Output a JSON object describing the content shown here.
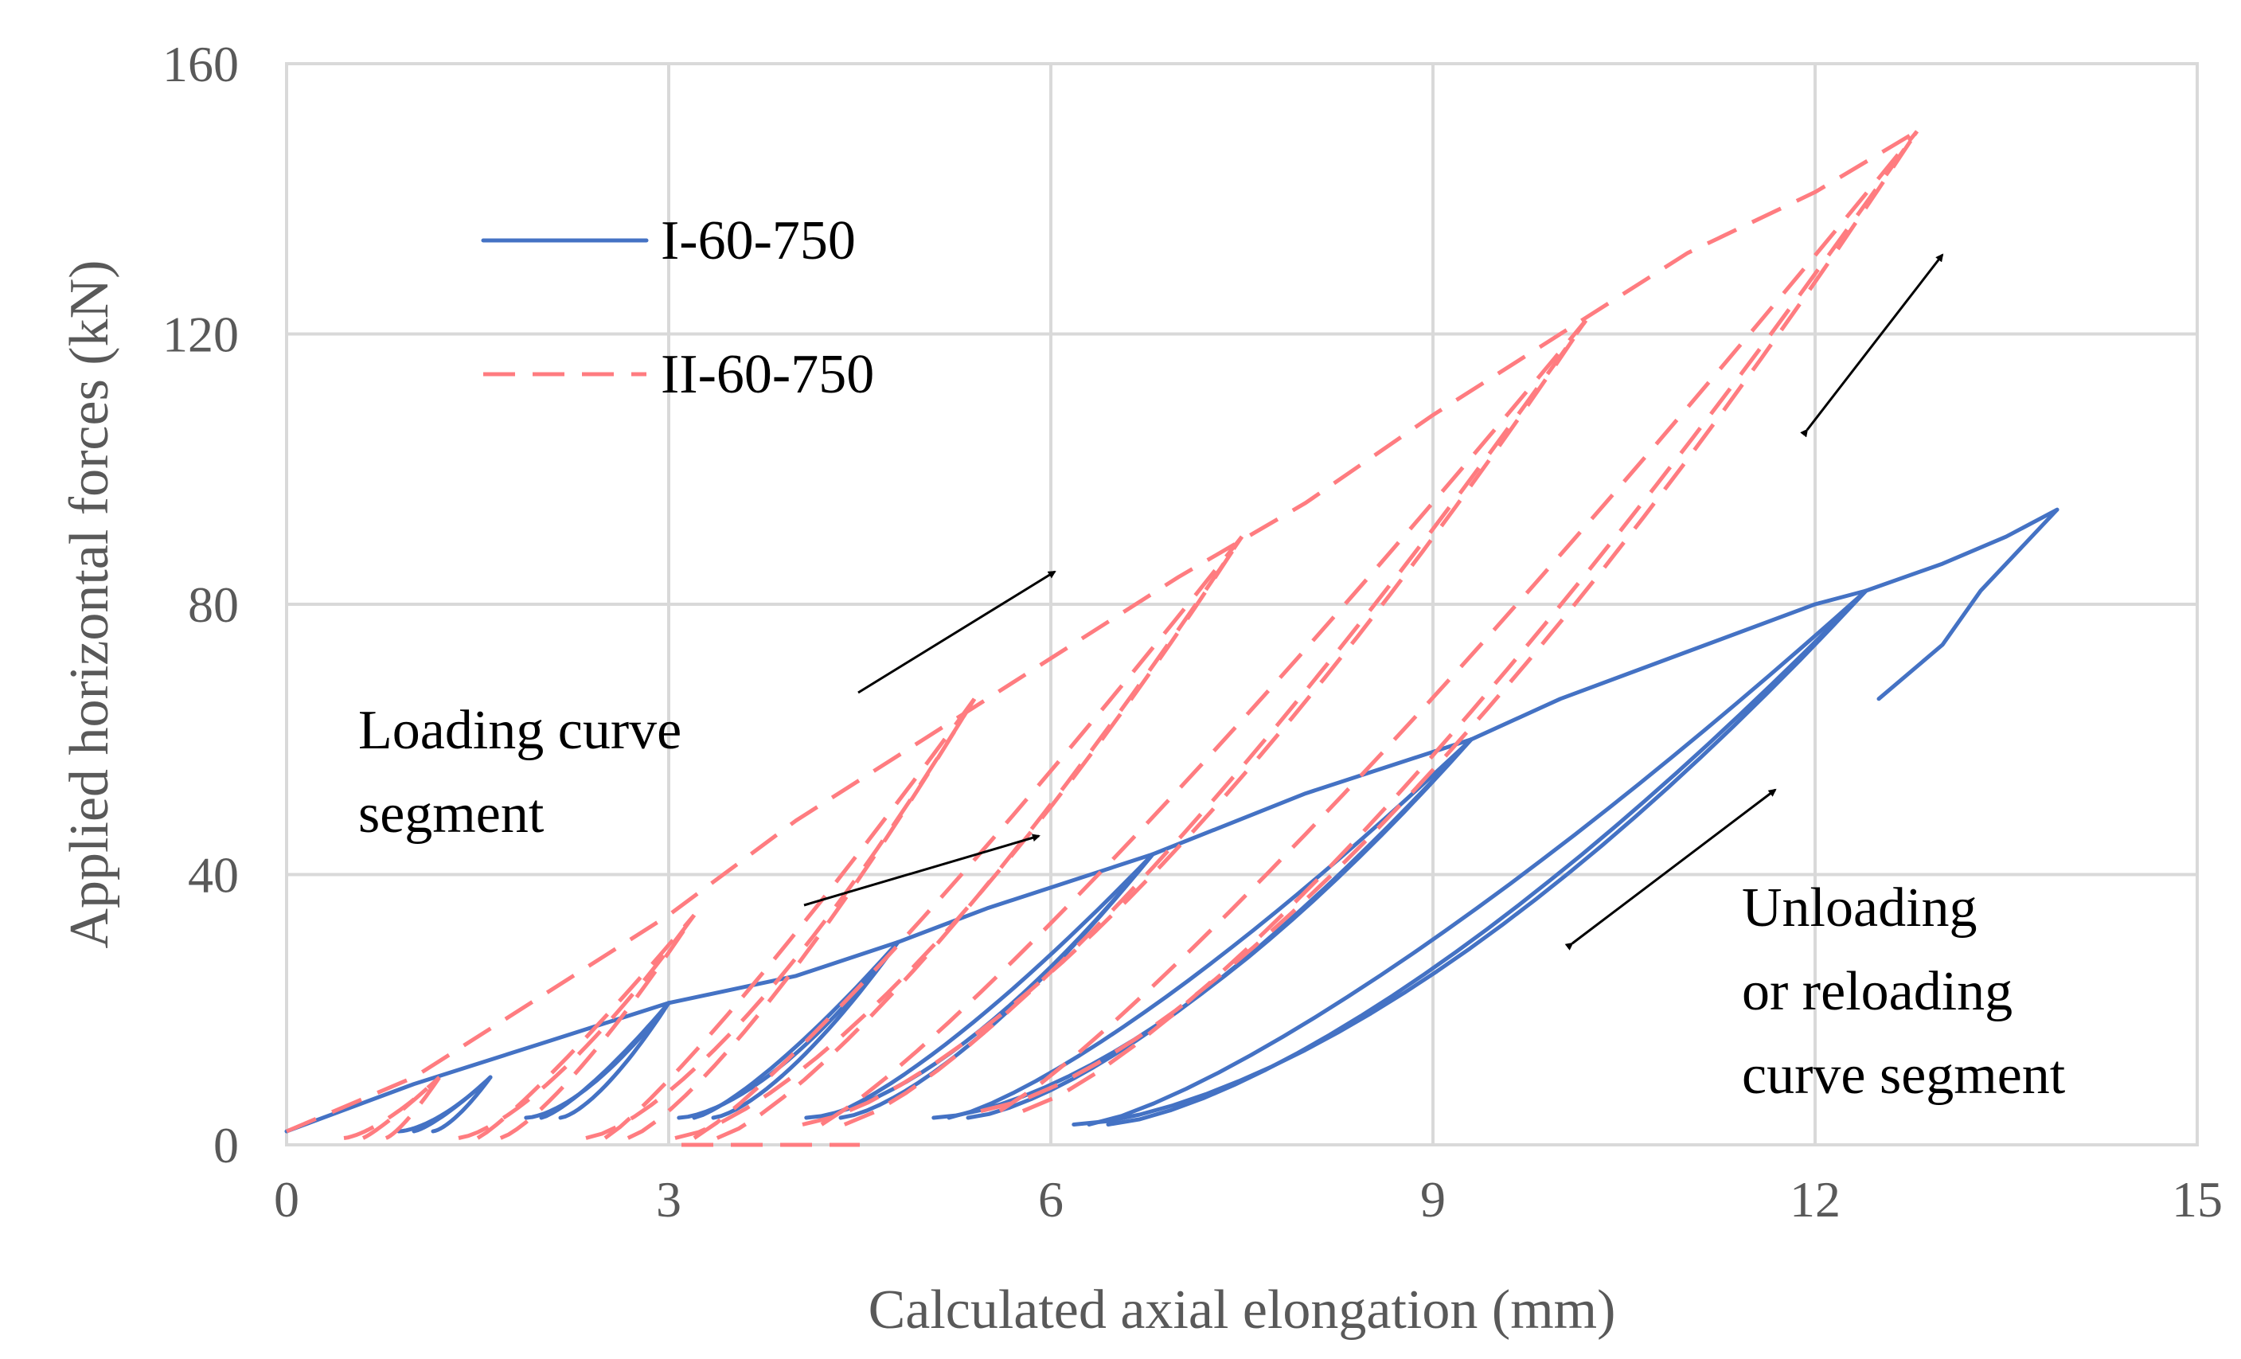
{
  "chart_data": {
    "type": "line",
    "xlabel": "Calculated axial elongation (mm)",
    "ylabel": "Applied horizontal forces (kN)",
    "xlim": [
      0,
      15
    ],
    "ylim": [
      0,
      160
    ],
    "x_ticks": [
      0,
      3,
      6,
      9,
      12,
      15
    ],
    "y_ticks": [
      0,
      40,
      80,
      120,
      160
    ],
    "grid": true,
    "legend_position": "upper-left",
    "colors": {
      "I": "#4472c4",
      "II": "#ff7c80"
    },
    "series": [
      {
        "name": "I-60-750",
        "style": "solid",
        "envelope": [
          [
            0,
            2
          ],
          [
            1,
            9
          ],
          [
            2,
            15
          ],
          [
            3,
            21
          ],
          [
            4,
            25
          ],
          [
            4.8,
            30
          ],
          [
            5.5,
            35
          ],
          [
            6.8,
            43
          ],
          [
            8,
            52
          ],
          [
            9.3,
            60
          ],
          [
            10,
            66
          ],
          [
            11,
            73
          ],
          [
            12,
            80
          ],
          [
            12.4,
            82
          ],
          [
            13,
            86
          ],
          [
            13.5,
            90
          ],
          [
            13.9,
            94
          ]
        ],
        "loops": [
          {
            "start": [
              1.0,
              2
            ],
            "peak": [
              1.6,
              10
            ]
          },
          {
            "start": [
              2.0,
              4
            ],
            "peak": [
              3.0,
              21
            ]
          },
          {
            "start": [
              3.2,
              4
            ],
            "peak": [
              4.8,
              30
            ]
          },
          {
            "start": [
              4.2,
              4
            ],
            "peak": [
              6.8,
              43
            ]
          },
          {
            "start": [
              5.2,
              4
            ],
            "peak": [
              9.3,
              60
            ]
          },
          {
            "start": [
              6.3,
              3
            ],
            "peak": [
              12.4,
              82
            ]
          }
        ],
        "post_peak": [
          [
            13.9,
            94
          ],
          [
            13.6,
            88
          ],
          [
            13.3,
            82
          ],
          [
            13.0,
            74
          ],
          [
            12.5,
            66
          ]
        ]
      },
      {
        "name": "II-60-750",
        "style": "dashed",
        "envelope": [
          [
            0,
            2
          ],
          [
            1,
            10
          ],
          [
            2,
            22
          ],
          [
            3,
            34
          ],
          [
            4,
            48
          ],
          [
            5,
            60
          ],
          [
            6,
            72
          ],
          [
            7,
            84
          ],
          [
            8,
            95
          ],
          [
            9,
            108
          ],
          [
            10,
            120
          ],
          [
            11,
            132
          ],
          [
            12,
            141
          ],
          [
            12.8,
            150
          ]
        ],
        "loops": [
          {
            "start": [
              0.6,
              1
            ],
            "peak": [
              1.2,
              10
            ]
          },
          {
            "start": [
              1.5,
              1
            ],
            "peak": [
              3.2,
              34
            ]
          },
          {
            "start": [
              2.5,
              1
            ],
            "peak": [
              5.4,
              66
            ]
          },
          {
            "start": [
              3.2,
              1
            ],
            "peak": [
              7.5,
              90
            ]
          },
          {
            "start": [
              4.2,
              3
            ],
            "peak": [
              10.2,
              122
            ]
          },
          {
            "start": [
              5.6,
              5
            ],
            "peak": [
              12.8,
              150
            ]
          }
        ],
        "flat_segment": [
          [
            3.1,
            0
          ],
          [
            4.5,
            0
          ]
        ]
      }
    ],
    "annotations": [
      {
        "id": "loading",
        "lines": [
          "Loading curve",
          "segment"
        ]
      },
      {
        "id": "unloading",
        "lines": [
          "Unloading",
          "or reloading",
          "curve segment"
        ]
      }
    ]
  }
}
